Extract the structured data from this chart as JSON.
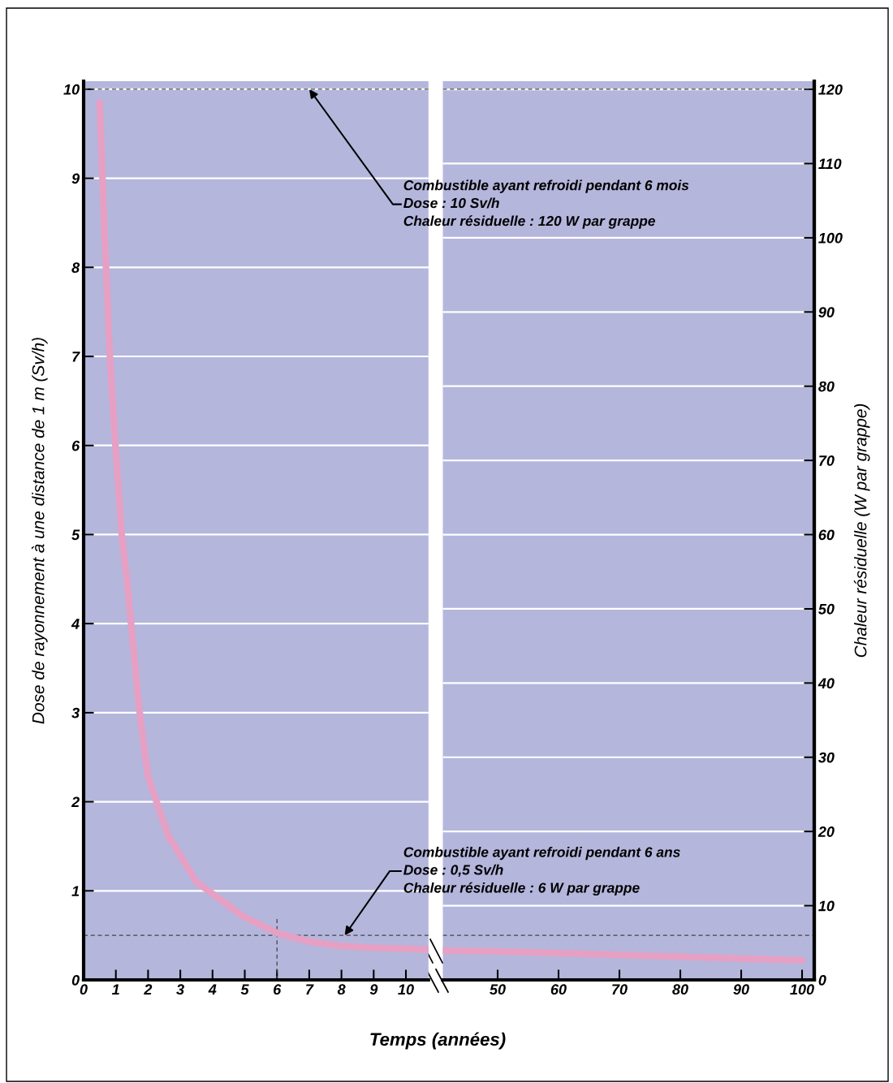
{
  "chart_data": [
    {
      "type": "line",
      "xlabel": "Temps (années)",
      "ylabel": "Dose de rayonnement à une distance de 1 m (Sv/h)",
      "x": [
        0.5,
        0.64,
        0.82,
        1.0,
        1.18,
        1.36,
        1.72,
        1.9,
        2.0,
        2.62,
        3.5,
        4.96,
        6.05,
        7.0,
        8.0,
        9.0,
        10.0,
        10.7
      ],
      "series": [
        {
          "color": "#e6a0c4",
          "values": [
            9.85,
            8.46,
            6.96,
            5.93,
            5.01,
            4.43,
            3.06,
            2.54,
            2.28,
            1.62,
            1.1,
            0.71,
            0.52,
            0.43,
            0.38,
            0.36,
            0.35,
            0.34
          ]
        },
        {
          "color": "#444444",
          "line_style": "dashed",
          "x": [
            6,
            6
          ],
          "values": [
            0,
            0.7
          ]
        }
      ],
      "xlim": [
        0,
        10.7
      ],
      "xticks": [
        0,
        1,
        2,
        3,
        4,
        5,
        6,
        7,
        8,
        9,
        10
      ],
      "ylim": [
        0,
        10.09
      ],
      "yticks": [
        0,
        1,
        2,
        3,
        4,
        5,
        6,
        7,
        8,
        9,
        10
      ],
      "grid": "y",
      "line_style": "solid",
      "marker": "none",
      "ref_lines": [
        {
          "axis": "y",
          "value": 10,
          "color": "#444444",
          "line_style": "dashed"
        },
        {
          "axis": "y",
          "value": 0.5,
          "color": "#444444",
          "line_style": "dashed"
        }
      ],
      "annotations": [
        {
          "text": "Combustible ayant refroidi pendant 6 mois\nDose : 10 Sv/h\nChaleur résiduelle : 120 W par grappe",
          "x": 7.0,
          "y": 10
        },
        {
          "text": "Combustible ayant refroidi pendant 6 ans\nDose : 0,5 Sv/h\nChaleur résiduelle : 6 W par grappe",
          "x": 8.1,
          "y": 0.5
        }
      ]
    },
    {
      "type": "line",
      "y2label": "Chaleur résiduelle (W par grappe)",
      "x": [
        41,
        50,
        70,
        100
      ],
      "series": [
        {
          "color": "#e6a0c4",
          "values": [
            0.33,
            0.32,
            0.28,
            0.22
          ]
        }
      ],
      "xlim": [
        41,
        102
      ],
      "xticks": [
        50,
        60,
        70,
        80,
        90,
        100
      ],
      "ylim": [
        0,
        10.09
      ],
      "y2lim": [
        0,
        121.1
      ],
      "y2ticks": [
        0,
        10,
        20,
        30,
        40,
        50,
        60,
        70,
        80,
        90,
        100,
        110,
        120
      ],
      "grid": "y",
      "line_style": "solid",
      "marker": "none",
      "ref_lines": [
        {
          "axis": "y",
          "value": 10,
          "color": "#444444",
          "line_style": "dashed"
        },
        {
          "axis": "y",
          "value": 0.5,
          "color": "#444444",
          "line_style": "dashed"
        }
      ]
    }
  ]
}
